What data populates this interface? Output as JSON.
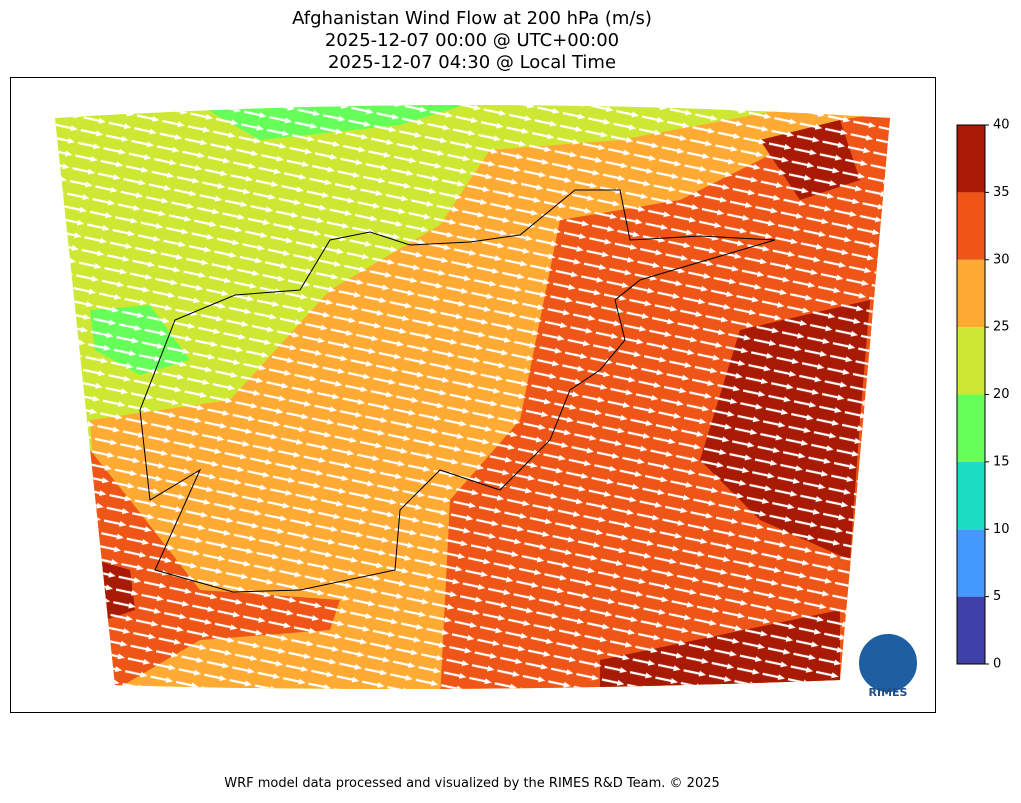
{
  "title": [
    "Afghanistan Wind Flow at 200 hPa (m/s)",
    "2025-12-07 00:00 @ UTC+00:00",
    "2025-12-07 04:30 @ Local Time"
  ],
  "colorbar": {
    "ticks": [
      0,
      5,
      10,
      15,
      20,
      25,
      30,
      35,
      40
    ],
    "colors": [
      "#3f3fa8",
      "#4499ff",
      "#19dcc0",
      "#66ff5a",
      "#cde832",
      "#ffaa33",
      "#ee5516",
      "#a81a04"
    ]
  },
  "logo": "RIMES",
  "footer": "WRF model data processed and visualized by the RIMES R&D Team. © 2025"
}
